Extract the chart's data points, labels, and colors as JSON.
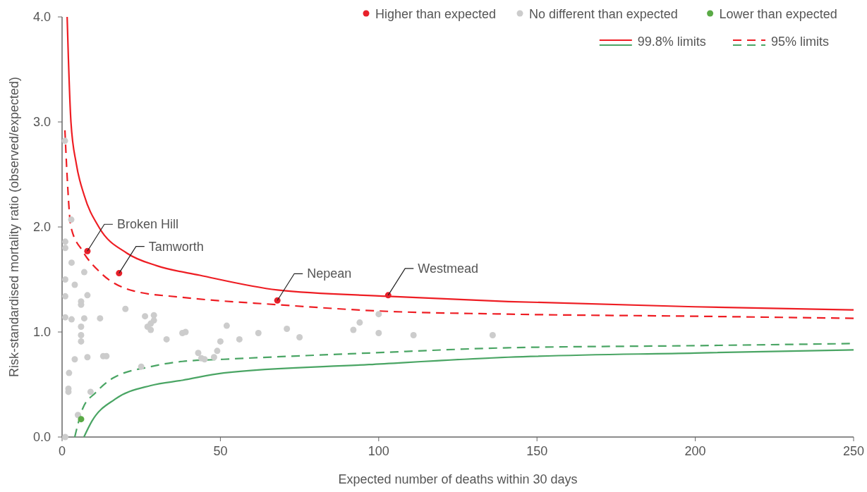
{
  "chart_data": {
    "type": "scatter",
    "xlabel": "Expected number of deaths within 30 days",
    "ylabel": "Risk-standardised mortality ratio (observed/expected)",
    "xlim": [
      0,
      250
    ],
    "ylim": [
      0,
      4
    ],
    "xticks": [
      0,
      50,
      100,
      150,
      200,
      250
    ],
    "yticks": [
      {
        "value": 0,
        "label": "0.0"
      },
      {
        "value": 1,
        "label": "1.0"
      },
      {
        "value": 2,
        "label": "2.0"
      },
      {
        "value": 3,
        "label": "3.0"
      },
      {
        "value": 4,
        "label": "4.0"
      }
    ],
    "legend": "top right",
    "marker": "circle",
    "grid": false,
    "series": [
      {
        "name": "Higher than expected",
        "color": "#e8202a",
        "x": [
          8,
          18,
          68,
          103
        ],
        "values": [
          1.77,
          1.56,
          1.3,
          1.35
        ]
      },
      {
        "name": "No different than expected",
        "color": "#cccccc",
        "x": [
          0.9,
          2.9,
          1,
          1,
          3,
          7,
          1,
          4,
          1,
          8,
          6,
          6,
          1,
          3,
          7,
          12,
          20,
          6,
          6,
          6,
          4,
          8,
          13,
          14,
          2.2,
          2,
          2,
          9,
          5,
          1,
          25,
          26.2,
          29,
          29,
          28,
          27,
          28,
          33,
          38,
          39,
          52,
          43,
          44,
          45,
          48,
          49,
          50,
          56,
          62,
          71,
          75,
          92,
          94,
          100,
          100,
          111,
          136
        ],
        "values": [
          2.82,
          2.07,
          1.86,
          1.8,
          1.66,
          1.57,
          1.5,
          1.45,
          1.34,
          1.35,
          1.29,
          1.26,
          1.14,
          1.12,
          1.13,
          1.13,
          1.22,
          1.05,
          0.97,
          0.91,
          0.74,
          0.76,
          0.77,
          0.77,
          0.61,
          0.46,
          0.43,
          0.43,
          0.21,
          0.0,
          0.67,
          1.15,
          1.16,
          1.11,
          1.08,
          1.05,
          1.02,
          0.93,
          0.99,
          1.0,
          1.06,
          0.8,
          0.75,
          0.74,
          0.76,
          0.82,
          0.91,
          0.93,
          0.99,
          1.03,
          0.95,
          1.02,
          1.09,
          1.17,
          0.99,
          0.97,
          0.97
        ]
      },
      {
        "name": "Lower than expected",
        "color": "#5aaa46",
        "x": [
          6
        ],
        "values": [
          0.17
        ]
      },
      {
        "name": "99.8% limits",
        "type": "line",
        "marker": "none",
        "line_style": "solid",
        "color": "#ee1d23",
        "x": [
          1.6,
          2,
          2.8,
          4.5,
          7,
          11.6,
          20.5,
          30,
          43.5,
          68,
          103,
          141,
          200,
          250
        ],
        "values": [
          4.0,
          3.6,
          3.0,
          2.6,
          2.3,
          2.0,
          1.75,
          1.63,
          1.54,
          1.4,
          1.34,
          1.29,
          1.24,
          1.21
        ]
      },
      {
        "type": "line",
        "marker": "none",
        "line_style": "solid",
        "color": "#4aa564",
        "x": [
          6.9,
          9.4,
          16.7,
          28,
          38,
          51,
          97,
          141,
          200,
          250
        ],
        "values": [
          0,
          0.15,
          0.36,
          0.49,
          0.54,
          0.61,
          0.69,
          0.76,
          0.8,
          0.83
        ]
      },
      {
        "name": "95% limits",
        "type": "line",
        "marker": "none",
        "line_style": "dashed",
        "color": "#ee1d23",
        "x": [
          0.9,
          1.6,
          2.8,
          6.5,
          12.3,
          22.7,
          38,
          68,
          100,
          141,
          200,
          250
        ],
        "values": [
          2.92,
          2.48,
          2.0,
          1.77,
          1.56,
          1.39,
          1.33,
          1.26,
          1.2,
          1.17,
          1.15,
          1.13
        ]
      },
      {
        "type": "line",
        "marker": "none",
        "line_style": "dashed",
        "color": "#4aa564",
        "x": [
          4.0,
          6.5,
          10.5,
          16,
          28,
          38,
          51,
          97,
          141,
          200,
          250
        ],
        "values": [
          0,
          0.27,
          0.42,
          0.56,
          0.67,
          0.72,
          0.74,
          0.8,
          0.85,
          0.87,
          0.89
        ]
      }
    ],
    "annotations": [
      {
        "text": "Broken Hill",
        "x": 8,
        "y": 1.77
      },
      {
        "text": "Tamworth",
        "x": 18,
        "y": 1.56
      },
      {
        "text": "Nepean",
        "x": 68,
        "y": 1.3
      },
      {
        "text": "Westmead",
        "x": 103,
        "y": 1.35
      }
    ]
  }
}
